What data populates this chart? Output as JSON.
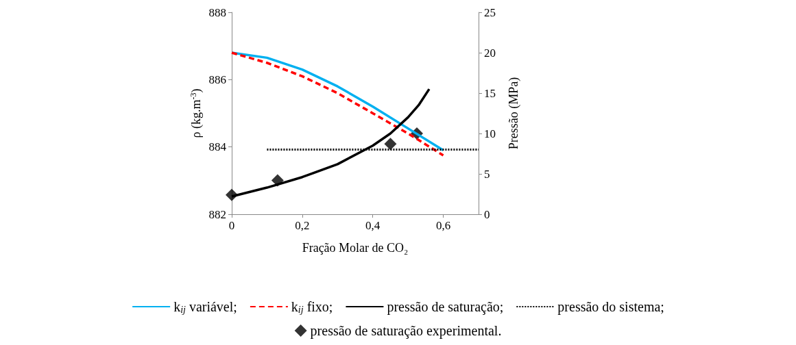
{
  "chart_data": {
    "type": "line",
    "xlabel": "Fração Molar de CO₂",
    "ylabel": "ρ (kg.m$^{-3}$)",
    "y2label": "Pressão (MPa)",
    "xlim": [
      0,
      0.7
    ],
    "xticks": [
      0,
      {
        "value": 0.2,
        "label": "0,2"
      },
      {
        "value": 0.4,
        "label": "0,4"
      },
      {
        "value": 0.6,
        "label": "0,6"
      }
    ],
    "ylim": [
      882,
      888
    ],
    "yticks": [
      882,
      884,
      886,
      888
    ],
    "y2lim": [
      0,
      25
    ],
    "y2ticks": [
      0,
      5,
      10,
      15,
      20,
      25
    ],
    "grid": false,
    "legend": "bottom",
    "series": [
      {
        "name": "k$_{ij}$ variável;",
        "color": "#00b0f0",
        "line_style": "solid",
        "marker": "none",
        "x": [
          0,
          0.1,
          0.2,
          0.3,
          0.4,
          0.5,
          0.6
        ],
        "values": [
          886.8,
          886.65,
          886.3,
          885.8,
          885.2,
          884.55,
          883.9
        ]
      },
      {
        "name": "k$_{ij}$ fixo;",
        "color": "#ff0000",
        "line_style": "dashed",
        "marker": "none",
        "x": [
          0,
          0.1,
          0.2,
          0.3,
          0.4,
          0.5,
          0.6
        ],
        "values": [
          886.8,
          886.5,
          886.1,
          885.6,
          885.0,
          884.4,
          883.75
        ]
      },
      {
        "name": "pressão de saturação;",
        "color": "#000000",
        "line_style": "solid",
        "marker": "none",
        "axis": "y2",
        "x": [
          0,
          0.1,
          0.2,
          0.3,
          0.4,
          0.45,
          0.5,
          0.53,
          0.56
        ],
        "values": [
          2.2,
          3.3,
          4.6,
          6.2,
          8.5,
          10.0,
          12.0,
          13.5,
          15.5
        ]
      },
      {
        "name": "pressão do sistema;",
        "color": "#000000",
        "line_style": "dotted",
        "marker": "none",
        "axis": "y2",
        "x": [
          0.1,
          0.7
        ],
        "values": [
          8,
          8
        ]
      },
      {
        "name": "pressão de saturação experimental.",
        "type": "scatter",
        "color": "#000000",
        "marker": "diamond",
        "axis": "y2",
        "x": [
          0,
          0.13,
          0.45,
          0.525
        ],
        "values": [
          2.4,
          4.2,
          8.7,
          10.0
        ]
      }
    ]
  }
}
